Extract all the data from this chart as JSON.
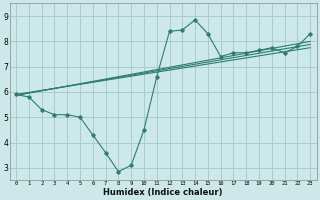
{
  "xlabel": "Humidex (Indice chaleur)",
  "bg_color": "#cce8e8",
  "grid_color": "#aacccc",
  "line_color": "#2e7d6e",
  "xlim": [
    -0.5,
    23.5
  ],
  "ylim": [
    2.5,
    9.5
  ],
  "xticks": [
    0,
    1,
    2,
    3,
    4,
    5,
    6,
    7,
    8,
    9,
    10,
    11,
    12,
    13,
    14,
    15,
    16,
    17,
    18,
    19,
    20,
    21,
    22,
    23
  ],
  "yticks": [
    3,
    4,
    5,
    6,
    7,
    8,
    9
  ],
  "main_x": [
    0,
    1,
    2,
    3,
    4,
    5,
    6,
    7,
    8,
    9,
    10,
    11,
    12,
    13,
    14,
    15,
    16,
    17,
    18,
    19,
    20,
    21,
    22,
    23
  ],
  "main_y": [
    5.9,
    5.8,
    5.3,
    5.1,
    5.1,
    5.0,
    4.3,
    3.6,
    2.85,
    3.1,
    4.5,
    6.6,
    8.4,
    8.45,
    8.85,
    8.3,
    7.4,
    7.55,
    7.55,
    7.65,
    7.75,
    7.55,
    7.8,
    8.3
  ],
  "trend1_x": [
    0,
    23
  ],
  "trend1_y": [
    5.9,
    7.75
  ],
  "trend2_x": [
    0,
    23
  ],
  "trend2_y": [
    5.88,
    7.88
  ],
  "trend3_x": [
    0,
    23
  ],
  "trend3_y": [
    5.86,
    8.0
  ]
}
